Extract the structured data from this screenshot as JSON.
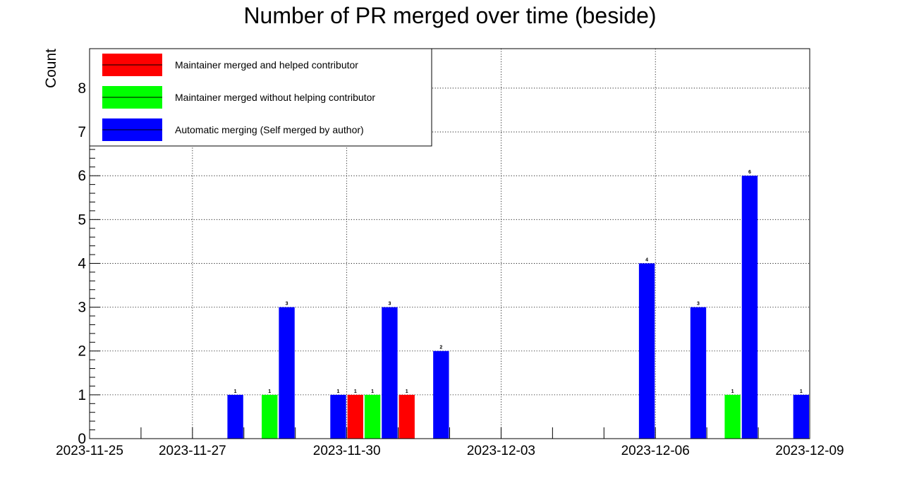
{
  "chart_data": {
    "type": "bar",
    "mode": "grouped",
    "title": "Number of PR merged over time (beside)",
    "xlabel": "",
    "ylabel": "Count",
    "x_ticks": [
      "2023-11-25",
      "2023-11-27",
      "2023-11-30",
      "2023-12-03",
      "2023-12-06",
      "2023-12-09"
    ],
    "xlim": [
      "2023-11-25",
      "2023-12-09"
    ],
    "ylim": [
      0,
      8.9
    ],
    "y_ticks": [
      0,
      1,
      2,
      3,
      4,
      5,
      6,
      7,
      8
    ],
    "grid": true,
    "legend_position": "top-left",
    "series": [
      {
        "name": "Maintainer merged and helped contributor",
        "color": "#ff0000",
        "points": [
          {
            "date": "2023-11-30",
            "value": 1
          },
          {
            "date": "2023-12-01",
            "value": 1
          }
        ]
      },
      {
        "name": "Maintainer merged without helping contributor",
        "color": "#00ff00",
        "points": [
          {
            "date": "2023-11-28",
            "value": 1
          },
          {
            "date": "2023-11-30",
            "value": 1
          },
          {
            "date": "2023-12-07",
            "value": 1
          }
        ]
      },
      {
        "name": "Automatic merging (Self merged by author)",
        "color": "#0000ff",
        "points": [
          {
            "date": "2023-11-27",
            "value": 1
          },
          {
            "date": "2023-11-28",
            "value": 3
          },
          {
            "date": "2023-11-29",
            "value": 1
          },
          {
            "date": "2023-11-30",
            "value": 3
          },
          {
            "date": "2023-12-01",
            "value": 2
          },
          {
            "date": "2023-12-05",
            "value": 4
          },
          {
            "date": "2023-12-06",
            "value": 3
          },
          {
            "date": "2023-12-07",
            "value": 6
          },
          {
            "date": "2023-12-08",
            "value": 1
          }
        ]
      }
    ]
  }
}
